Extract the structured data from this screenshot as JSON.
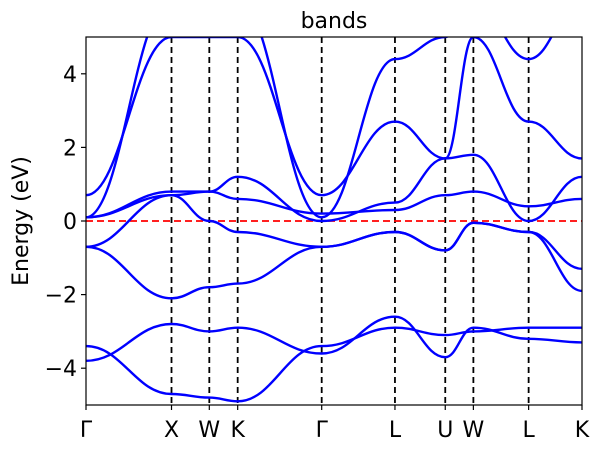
{
  "chart_data": {
    "type": "line",
    "title": "bands",
    "xlabel": "",
    "ylabel": "Energy (eV)",
    "xlim": [
      0,
      1
    ],
    "ylim": [
      -5,
      5
    ],
    "yticks": [
      -4,
      -2,
      0,
      2,
      4
    ],
    "ytick_labels": [
      "−4",
      "−2",
      "0",
      "2",
      "4"
    ],
    "kpoints": [
      {
        "label": "Γ",
        "x": 0.0
      },
      {
        "label": "X",
        "x": 0.1724
      },
      {
        "label": "W",
        "x": 0.2486
      },
      {
        "label": "K",
        "x": 0.3058
      },
      {
        "label": "Γ",
        "x": 0.4752
      },
      {
        "label": "L",
        "x": 0.6229
      },
      {
        "label": "U",
        "x": 0.7243
      },
      {
        "label": "W",
        "x": 0.781
      },
      {
        "label": "L",
        "x": 0.8924
      },
      {
        "label": "K",
        "x": 1.0
      }
    ],
    "fermi_level": 0,
    "colors": {
      "bands": "#0000ff",
      "fermi": "#ff0000",
      "kline": "#000000"
    },
    "series": [
      {
        "values": [
          -3.4,
          -4.7,
          -4.8,
          -4.9,
          -3.4,
          -2.9,
          -3.1,
          -3.0,
          -2.9,
          -2.9
        ]
      },
      {
        "values": [
          -3.8,
          -2.8,
          -3.0,
          -2.9,
          -3.6,
          -2.6,
          -3.7,
          -2.9,
          -3.2,
          -3.3
        ]
      },
      {
        "values": [
          -0.7,
          -2.1,
          -1.8,
          -1.7,
          -0.7,
          -0.3,
          -0.8,
          -0.05,
          -0.3,
          -1.9
        ]
      },
      {
        "values": [
          -0.7,
          0.7,
          0.0,
          -0.3,
          -0.7,
          -0.3,
          -0.8,
          -0.05,
          -0.3,
          -1.3
        ]
      },
      {
        "values": [
          0.1,
          0.7,
          0.8,
          0.6,
          0.2,
          0.3,
          0.7,
          0.8,
          0.4,
          0.6
        ]
      },
      {
        "values": [
          0.1,
          0.8,
          0.8,
          1.2,
          0.0,
          0.5,
          1.7,
          1.8,
          0.0,
          1.2
        ]
      },
      {
        "values": [
          0.7,
          5.0,
          5.0,
          5.0,
          0.7,
          2.7,
          1.7,
          5.0,
          2.7,
          1.7
        ]
      },
      {
        "values": [
          0.1,
          6.0,
          6.0,
          6.0,
          0.1,
          4.4,
          5.0,
          6.0,
          4.4,
          6.0
        ]
      }
    ]
  }
}
